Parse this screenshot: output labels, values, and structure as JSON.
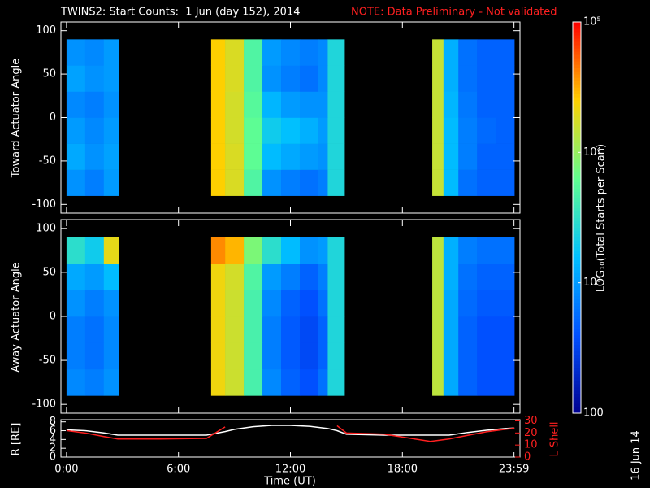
{
  "chart_data": [
    {
      "type": "heatmap",
      "title": "TWINS2: Start Counts:  1 Jun (day 152), 2014",
      "note": "NOTE: Data Preliminary - Not validated",
      "ylabel": "Toward Actuator Angle",
      "ylim": [
        -110,
        110
      ],
      "yticks": [
        -100,
        -50,
        0,
        50,
        100
      ],
      "xlim": [
        -0.3,
        24.3
      ],
      "x_edges": [
        0,
        1,
        2,
        2.8,
        7.75,
        8.5,
        9.5,
        10.5,
        11.5,
        12.5,
        13.5,
        14,
        14.9,
        19.6,
        20.2,
        21,
        22,
        23,
        24
      ],
      "y_edges": [
        -90,
        -60,
        -30,
        0,
        30,
        60,
        90
      ],
      "values": [
        [
          900,
          700,
          1000,
          null,
          25000,
          18000,
          5000,
          900,
          700,
          600,
          700,
          2500,
          null,
          15000,
          1500,
          600,
          500,
          500
        ],
        [
          1200,
          900,
          1100,
          null,
          25000,
          18000,
          6000,
          1500,
          1200,
          1000,
          900,
          2500,
          null,
          15000,
          1500,
          700,
          500,
          500
        ],
        [
          1000,
          800,
          1000,
          null,
          25000,
          17000,
          6000,
          2000,
          1600,
          1300,
          1000,
          2500,
          null,
          15000,
          1500,
          700,
          550,
          500
        ],
        [
          800,
          700,
          900,
          null,
          25000,
          17000,
          5500,
          1400,
          1000,
          900,
          900,
          2500,
          null,
          15000,
          1400,
          650,
          500,
          500
        ],
        [
          1100,
          900,
          1000,
          null,
          25000,
          18000,
          5000,
          900,
          700,
          600,
          800,
          2500,
          null,
          15000,
          1300,
          600,
          500,
          500
        ],
        [
          900,
          800,
          1000,
          null,
          25000,
          18000,
          5000,
          1000,
          800,
          700,
          800,
          2500,
          null,
          15000,
          1300,
          600,
          500,
          500
        ]
      ],
      "zlim": [
        100,
        100000
      ],
      "log_scale_z": true,
      "zticks": [
        100,
        {
          "value": 1000,
          "label": "10³"
        },
        {
          "value": 10000,
          "label": "10⁴"
        },
        {
          "value": 100000,
          "label": "10⁵"
        }
      ],
      "colorbar_label": "LOG₁₀(Total Starts per Scan)",
      "colormap": [
        "#000090",
        "#0050ff",
        "#00c0ff",
        "#60ff90",
        "#ffd000",
        "#ff0000"
      ]
    },
    {
      "type": "heatmap",
      "ylabel": "Away Actuator Angle",
      "ylim": [
        -110,
        110
      ],
      "yticks": [
        -100,
        -50,
        0,
        50,
        100
      ],
      "xlim": [
        -0.3,
        24.3
      ],
      "x_edges": [
        0,
        1,
        2,
        2.8,
        7.75,
        8.5,
        9.5,
        10.5,
        11.5,
        12.5,
        13.5,
        14,
        14.9,
        19.6,
        20.2,
        21,
        22,
        23,
        24
      ],
      "y_edges": [
        -90,
        -60,
        -30,
        0,
        30,
        60,
        90
      ],
      "values": [
        [
          800,
          700,
          900,
          null,
          22000,
          16000,
          4500,
          800,
          500,
          400,
          600,
          2500,
          null,
          14000,
          1200,
          500,
          400,
          400
        ],
        [
          700,
          600,
          800,
          null,
          22000,
          16000,
          4500,
          700,
          450,
          350,
          500,
          2500,
          null,
          14000,
          1200,
          500,
          400,
          400
        ],
        [
          700,
          600,
          800,
          null,
          22000,
          16000,
          4500,
          700,
          450,
          350,
          500,
          2500,
          null,
          14000,
          1200,
          500,
          400,
          400
        ],
        [
          900,
          700,
          900,
          null,
          22000,
          16000,
          4500,
          800,
          500,
          400,
          600,
          2500,
          null,
          14000,
          1200,
          550,
          450,
          450
        ],
        [
          1200,
          1000,
          1500,
          null,
          22000,
          17000,
          5000,
          1000,
          700,
          500,
          700,
          2500,
          null,
          14000,
          1300,
          600,
          500,
          500
        ],
        [
          3000,
          2000,
          20000,
          null,
          40000,
          30000,
          8000,
          3000,
          1500,
          900,
          1000,
          2500,
          null,
          14000,
          1300,
          700,
          600,
          600
        ]
      ]
    },
    {
      "type": "line",
      "xlabel": "Time (UT)",
      "ylabel": "R [RE]",
      "y2label": "L Shell",
      "stamp": "16 Jun 14",
      "xlim": [
        -0.3,
        24.3
      ],
      "xticks": [
        {
          "value": 0,
          "label": "0:00"
        },
        {
          "value": 6,
          "label": "6:00"
        },
        {
          "value": 12,
          "label": "12:00"
        },
        {
          "value": 18,
          "label": "18:00"
        },
        {
          "value": 23.98,
          "label": "23:59"
        }
      ],
      "ylim": [
        0,
        8.5
      ],
      "yticks": [
        0,
        2,
        4,
        6,
        8
      ],
      "y2lim": [
        0,
        31
      ],
      "y2ticks": [
        0,
        10,
        20,
        30
      ],
      "x": [
        0,
        1,
        2,
        2.75,
        5,
        7.5,
        8.5,
        9,
        10,
        11,
        12,
        13,
        14,
        14.5,
        15,
        17,
        19.5,
        20.5,
        21.5,
        22.5,
        23.5,
        24
      ],
      "series": [
        {
          "name": "R",
          "color": "#ffffff",
          "values": [
            6.2,
            6,
            5.5,
            5,
            5,
            5,
            5.8,
            6.3,
            6.9,
            7.2,
            7.2,
            7.0,
            6.5,
            6,
            5.2,
            5,
            5,
            5,
            5.6,
            6.1,
            6.5,
            6.6
          ]
        },
        {
          "name": "L Shell",
          "color": "#ff2020",
          "axis": "y2",
          "values": [
            22,
            20,
            17,
            15,
            15,
            15.5,
            25,
            null,
            null,
            null,
            null,
            null,
            null,
            26,
            20,
            19,
            13,
            15,
            18,
            21,
            23,
            24
          ]
        }
      ]
    }
  ]
}
